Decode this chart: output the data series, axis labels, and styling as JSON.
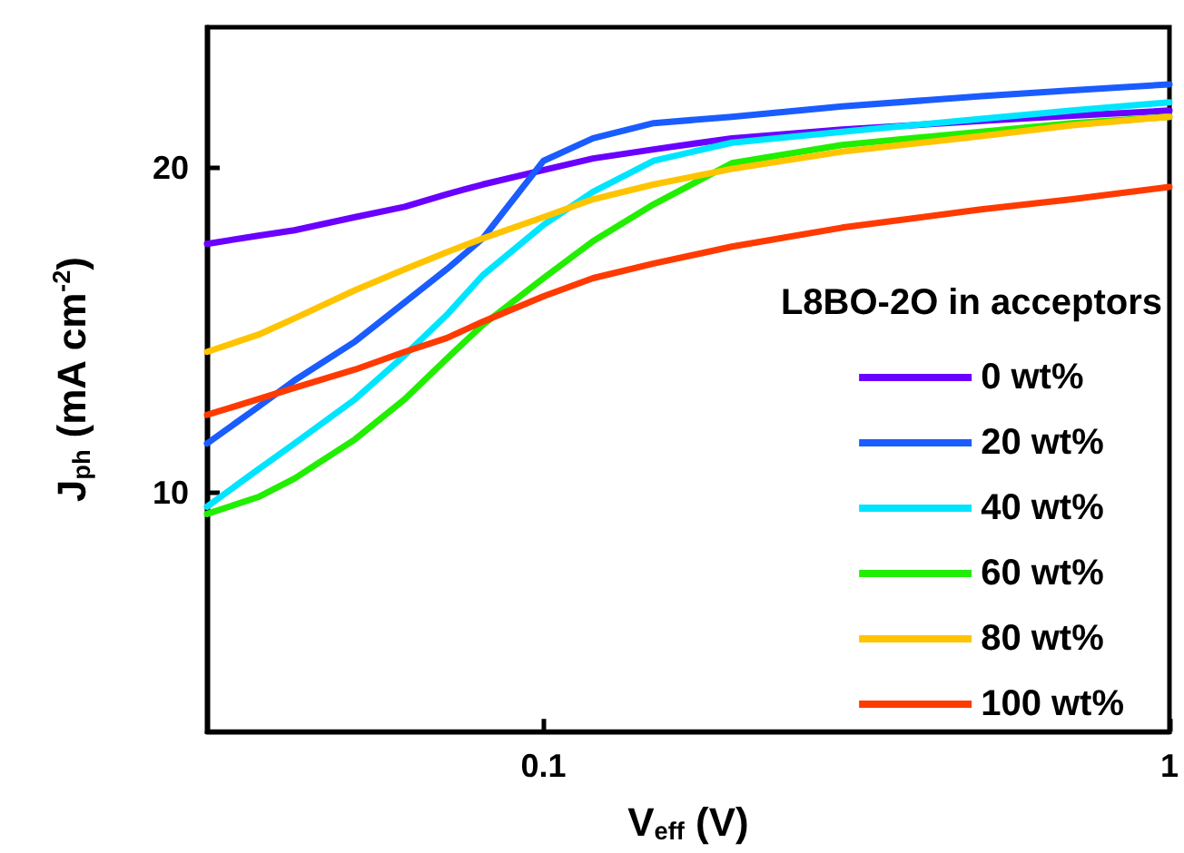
{
  "chart_data": {
    "type": "line",
    "xlabel": "V$_{eff}$ (V)",
    "ylabel": "J$_{ph}$ (mA cm$^{-2}$)",
    "legend_title": "L8BO-2O in acceptors",
    "x": [
      0.029,
      0.035,
      0.04,
      0.05,
      0.06,
      0.07,
      0.08,
      0.1,
      0.12,
      0.15,
      0.2,
      0.3,
      0.5,
      0.7,
      1
    ],
    "series": [
      {
        "name": "0 wt%",
        "color": "#6a00ff",
        "values": [
          17.0,
          17.3,
          17.5,
          18.0,
          18.4,
          18.9,
          19.3,
          19.9,
          20.4,
          20.8,
          21.3,
          21.7,
          22.1,
          22.35,
          22.6
        ]
      },
      {
        "name": "20 wt%",
        "color": "#1a5cff",
        "values": [
          11.1,
          12.0,
          12.7,
          13.8,
          15.0,
          16.1,
          17.2,
          20.3,
          21.3,
          22.0,
          22.3,
          22.8,
          23.3,
          23.6,
          23.9
        ]
      },
      {
        "name": "40 wt%",
        "color": "#00e5ff",
        "values": [
          9.7,
          10.5,
          11.1,
          12.2,
          13.4,
          14.6,
          15.9,
          17.7,
          19.0,
          20.3,
          21.1,
          21.6,
          22.2,
          22.6,
          23.0
        ]
      },
      {
        "name": "60 wt%",
        "color": "#22ee00",
        "values": [
          9.55,
          9.9,
          10.3,
          11.2,
          12.2,
          13.3,
          14.3,
          15.8,
          17.1,
          18.5,
          20.2,
          21.0,
          21.6,
          22.0,
          22.3
        ]
      },
      {
        "name": "80 wt%",
        "color": "#ffc400",
        "values": [
          13.5,
          14.0,
          14.5,
          15.4,
          16.1,
          16.7,
          17.2,
          18.0,
          18.7,
          19.3,
          19.95,
          20.7,
          21.4,
          21.9,
          22.3
        ]
      },
      {
        "name": "100 wt%",
        "color": "#ff3a00",
        "values": [
          11.8,
          12.2,
          12.5,
          13.0,
          13.5,
          13.9,
          14.4,
          15.2,
          15.8,
          16.3,
          16.9,
          17.6,
          18.3,
          18.7,
          19.2
        ]
      }
    ],
    "log": "xy",
    "xlim": [
      0.029,
      1
    ],
    "ylim": [
      6,
      27
    ],
    "xticks": [
      0.1,
      1
    ],
    "yticks": [
      10,
      20
    ],
    "grid": false,
    "legend": "bottom right",
    "marker": "none",
    "line_style": "solid"
  }
}
